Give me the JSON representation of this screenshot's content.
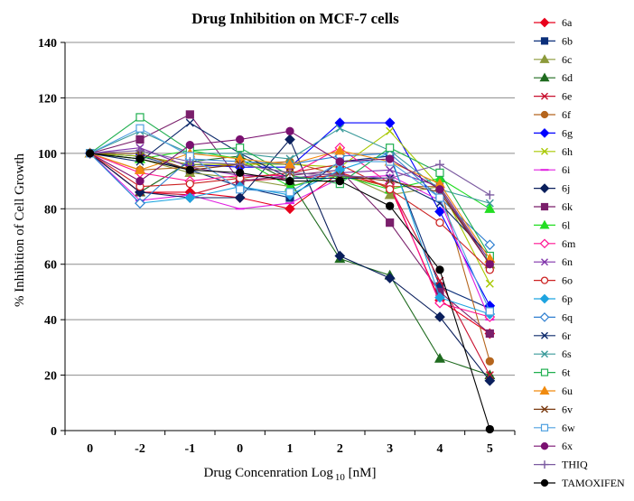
{
  "chart_data": {
    "type": "line",
    "title": "Drug Inhibition  on MCF-7 cells",
    "xlabel": "Drug Concenration Log",
    "xlabel_sub": "10",
    "xlabel_suffix": " [nM]",
    "ylabel": "% Inhibition of Cell Growth",
    "categories": [
      "0",
      "-2",
      "-1",
      "0",
      "1",
      "2",
      "3",
      "4",
      "5"
    ],
    "ylim": [
      0,
      140
    ],
    "yticks": [
      0,
      20,
      40,
      60,
      80,
      100,
      120,
      140
    ],
    "grid": "horizontal",
    "legend_position": "right",
    "series": [
      {
        "name": "6a",
        "color": "#E8001C",
        "marker": "diamond",
        "fill": true,
        "values": [
          100,
          86,
          86,
          84,
          80,
          93,
          88,
          47,
          35
        ]
      },
      {
        "name": "6b",
        "color": "#0B2F7A",
        "marker": "square",
        "fill": true,
        "values": [
          100,
          99,
          94,
          88,
          84,
          97,
          99,
          52,
          44
        ]
      },
      {
        "name": "6c",
        "color": "#8C9A3A",
        "marker": "triangle",
        "fill": true,
        "values": [
          100,
          98,
          93,
          91,
          88,
          93,
          85,
          88,
          60
        ]
      },
      {
        "name": "6d",
        "color": "#1F6B1F",
        "marker": "triangle",
        "fill": true,
        "values": [
          100,
          86,
          97,
          99,
          90,
          62,
          56,
          26,
          20
        ]
      },
      {
        "name": "6e",
        "color": "#C8102E",
        "marker": "x",
        "fill": false,
        "values": [
          100,
          86,
          85,
          90,
          91,
          92,
          88,
          54,
          20
        ]
      },
      {
        "name": "6f",
        "color": "#B5651D",
        "marker": "circle",
        "fill": true,
        "values": [
          100,
          94,
          95,
          96,
          97,
          92,
          88,
          88,
          25
        ]
      },
      {
        "name": "6g",
        "color": "#0000FF",
        "marker": "diamond",
        "fill": true,
        "values": [
          100,
          99,
          96,
          95,
          95,
          111,
          111,
          79,
          45
        ]
      },
      {
        "name": "6h",
        "color": "#A8C800",
        "marker": "x",
        "fill": false,
        "values": [
          100,
          99,
          96,
          96,
          96,
          95,
          108,
          88,
          53
        ]
      },
      {
        "name": "6i",
        "color": "#E020E0",
        "marker": "dash",
        "fill": false,
        "values": [
          100,
          83,
          85,
          80,
          82,
          91,
          92,
          83,
          40
        ]
      },
      {
        "name": "6j",
        "color": "#0A1F5C",
        "marker": "diamond",
        "fill": true,
        "values": [
          100,
          86,
          84,
          84,
          105,
          63,
          55,
          41,
          18
        ]
      },
      {
        "name": "6k",
        "color": "#7A1F6B",
        "marker": "square",
        "fill": true,
        "values": [
          100,
          105,
          114,
          90,
          92,
          94,
          75,
          50,
          35
        ]
      },
      {
        "name": "6l",
        "color": "#22DD22",
        "marker": "triangle",
        "fill": true,
        "values": [
          100,
          98,
          101,
          98,
          88,
          92,
          87,
          91,
          80
        ]
      },
      {
        "name": "6m",
        "color": "#FF1493",
        "marker": "diamond",
        "fill": false,
        "values": [
          100,
          93,
          90,
          92,
          92,
          102,
          89,
          46,
          41
        ]
      },
      {
        "name": "6n",
        "color": "#8033AA",
        "marker": "x",
        "fill": false,
        "values": [
          100,
          102,
          95,
          92,
          91,
          93,
          94,
          88,
          61
        ]
      },
      {
        "name": "6o",
        "color": "#CC2222",
        "marker": "circle",
        "fill": false,
        "values": [
          100,
          88,
          89,
          91,
          93,
          96,
          87,
          75,
          58
        ]
      },
      {
        "name": "6p",
        "color": "#1EA4E0",
        "marker": "diamond",
        "fill": true,
        "values": [
          100,
          82,
          84,
          88,
          85,
          94,
          100,
          48,
          42
        ]
      },
      {
        "name": "6q",
        "color": "#2F7FD0",
        "marker": "diamond",
        "fill": false,
        "values": [
          100,
          82,
          98,
          97,
          96,
          99,
          100,
          84,
          67
        ]
      },
      {
        "name": "6r",
        "color": "#0D2A6B",
        "marker": "x",
        "fill": false,
        "values": [
          100,
          97,
          111,
          100,
          91,
          91,
          91,
          82,
          63
        ]
      },
      {
        "name": "6s",
        "color": "#3A9A9A",
        "marker": "x",
        "fill": false,
        "values": [
          100,
          108,
          100,
          100,
          98,
          109,
          101,
          87,
          82
        ]
      },
      {
        "name": "6t",
        "color": "#1FAF4F",
        "marker": "square",
        "fill": false,
        "values": [
          100,
          113,
          101,
          102,
          92,
          89,
          102,
          93,
          63
        ]
      },
      {
        "name": "6u",
        "color": "#F08A0F",
        "marker": "triangle",
        "fill": true,
        "values": [
          100,
          94,
          100,
          98,
          96,
          101,
          97,
          89,
          62
        ]
      },
      {
        "name": "6v",
        "color": "#7A3A10",
        "marker": "x",
        "fill": false,
        "values": [
          100,
          100,
          94,
          96,
          93,
          92,
          90,
          86,
          60
        ]
      },
      {
        "name": "6w",
        "color": "#4FA0E0",
        "marker": "square",
        "fill": false,
        "values": [
          100,
          109,
          99,
          87,
          86,
          97,
          97,
          84,
          43
        ]
      },
      {
        "name": "6x",
        "color": "#7A1070",
        "marker": "circle",
        "fill": true,
        "values": [
          100,
          90,
          103,
          105,
          108,
          97,
          98,
          87,
          60
        ]
      },
      {
        "name": "THIQ",
        "color": "#7B5AA0",
        "marker": "plus",
        "fill": false,
        "values": [
          100,
          101,
          97,
          96,
          93,
          92,
          91,
          96,
          85
        ]
      },
      {
        "name": "TAMOXIFEN",
        "color": "#000000",
        "marker": "circle",
        "fill": true,
        "values": [
          100,
          98,
          94,
          93,
          90,
          90,
          81,
          58,
          0.5
        ]
      }
    ]
  }
}
